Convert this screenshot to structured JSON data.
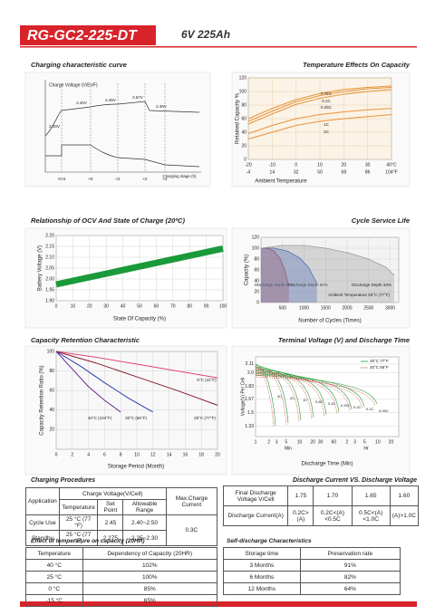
{
  "header": {
    "model": "RG-GC2-225-DT",
    "spec": "6V 225Ah"
  },
  "charging_curve": {
    "title": "Charging characteristic curve",
    "axis_label": "Charge Voltage (V/EVF)",
    "voltage_labels": [
      "2.00V",
      "2.40V",
      "2.45V",
      "2.67V",
      "2.30V"
    ],
    "stages": [
      "<0.5",
      "<6",
      "<2",
      "<2",
      "<4"
    ],
    "x_label": "Charging stage (h)"
  },
  "temperature_effects": {
    "type": "line",
    "title": "Temperature Effects On Capacity",
    "y_label": "Retained Capacity %",
    "x_label": "Ambient Temperature",
    "x": [
      -20,
      -10,
      0,
      10,
      20,
      30,
      40
    ],
    "xlim": [
      -20,
      40
    ],
    "xticks": [
      -20,
      -10,
      0,
      10,
      20,
      30,
      {
        "value": 40,
        "label": "40°C"
      }
    ],
    "xticks_f": [
      -4,
      14,
      32,
      50,
      68,
      86,
      {
        "value": 104,
        "label": "104°F"
      }
    ],
    "ylim": [
      0,
      120
    ],
    "yticks": [
      0,
      20,
      40,
      60,
      80,
      100,
      120
    ],
    "grid": true,
    "series": [
      {
        "name": "0.05C",
        "color": "#e8923a",
        "values": [
          60,
          75,
          88,
          97,
          103,
          106,
          108
        ]
      },
      {
        "name": "0.1C",
        "color": "#e8923a",
        "values": [
          56,
          71,
          85,
          94,
          100,
          104,
          106
        ]
      },
      {
        "name": "0.25C",
        "color": "#e8923a",
        "values": [
          52,
          67,
          81,
          90,
          96,
          100,
          103
        ]
      },
      {
        "name": "1C",
        "color": "#e8923a",
        "values": [
          38,
          50,
          60,
          66,
          70,
          73,
          75
        ]
      },
      {
        "name": "2C",
        "color": "#e8923a",
        "values": [
          30,
          40,
          50,
          56,
          60,
          63,
          66
        ]
      }
    ]
  },
  "ocv": {
    "type": "line",
    "title": "Relationship of OCV And State of Charge (20ºC)",
    "y_label": "Battery Voltage (V)",
    "x_label": "State Of Capacity (%)",
    "xlim": [
      0,
      100
    ],
    "xticks": [
      0,
      10,
      20,
      30,
      40,
      50,
      60,
      70,
      80,
      90,
      100
    ],
    "ylim": [
      1.9,
      2.2
    ],
    "yticks": [
      {
        "value": 1.9,
        "label": "1.90"
      },
      1.95,
      {
        "value": 2,
        "label": "2.00"
      },
      2.05,
      {
        "value": 2.1,
        "label": "2.10"
      },
      2.15,
      {
        "value": 2.2,
        "label": "2.20"
      }
    ],
    "grid": true,
    "series": [
      {
        "color": "#1a9a3a",
        "x": [
          0,
          100
        ],
        "values": [
          1.975,
          2.14
        ]
      }
    ]
  },
  "cycle_life": {
    "type": "line",
    "title": "Cycle Service Life",
    "y_label": "Capacity (%)",
    "x_label": "Number of Cycles (Times)",
    "note": "Ambient Temperature 25°C (77°F)",
    "xlim": [
      0,
      3200
    ],
    "xticks": [
      500,
      1000,
      1500,
      2000,
      2500,
      3000
    ],
    "ylim": [
      0,
      120
    ],
    "yticks": [
      0,
      20,
      40,
      60,
      80,
      100,
      120
    ],
    "grid": true,
    "series": [
      {
        "name": "Discharge Depth 80%",
        "color": "#d42a2a",
        "x": [
          0,
          150,
          300,
          450,
          550,
          650
        ],
        "values": [
          100,
          100,
          95,
          80,
          60,
          30
        ]
      },
      {
        "name": "Discharge Depth 50%",
        "color": "#2a55c8",
        "x": [
          0,
          300,
          600,
          900,
          1100,
          1300
        ],
        "values": [
          100,
          100,
          95,
          82,
          65,
          35
        ]
      },
      {
        "name": "Discharge Depth 33%",
        "color": "#9a9a9a",
        "x": [
          0,
          500,
          1000,
          1500,
          2000,
          2500,
          2900,
          3100
        ],
        "values": [
          100,
          105,
          105,
          100,
          92,
          80,
          65,
          50
        ]
      }
    ]
  },
  "retention": {
    "type": "line",
    "title": "Capacity Retention Characteristic",
    "y_label": "Capacity Retention Ratio (%)",
    "x_label": "Storage Period (Month)",
    "xlim": [
      0,
      20
    ],
    "xticks": [
      0,
      2,
      4,
      6,
      8,
      10,
      12,
      14,
      16,
      18,
      20
    ],
    "ylim": [
      0,
      100
    ],
    "yticks": [
      20,
      40,
      60,
      80,
      100
    ],
    "grid": true,
    "series": [
      {
        "name": "5°C (41°F)",
        "color": "#e0457a",
        "x": [
          0,
          5,
          10,
          15,
          20
        ],
        "values": [
          100,
          94,
          87,
          80,
          73
        ]
      },
      {
        "name": "25°C (77°F)",
        "color": "#8a1c2c",
        "x": [
          0,
          5,
          10,
          15,
          20
        ],
        "values": [
          100,
          88,
          74,
          60,
          45
        ]
      },
      {
        "name": "30°C (86°F)",
        "color": "#2a3fb0",
        "x": [
          0,
          3,
          6,
          9,
          12
        ],
        "values": [
          100,
          85,
          68,
          52,
          38
        ]
      },
      {
        "name": "40°C (104°F)",
        "color": "#6a2a8a",
        "x": [
          0,
          2,
          4,
          6,
          8
        ],
        "values": [
          100,
          82,
          64,
          50,
          38
        ]
      }
    ]
  },
  "terminal_voltage": {
    "type": "line",
    "title": "Terminal Voltage (V) and Discharge Time",
    "y_label": "Voltage(V) Per Cell",
    "x_label": "Discharge Time (Min)",
    "unit_min": "Min",
    "unit_hr": "Hr",
    "legend": [
      "25°C 77°F",
      "20°C 68°F"
    ],
    "ylim": [
      1.2,
      2.2
    ],
    "yticks": [
      1.33,
      1.5,
      1.67,
      1.83,
      {
        "value": 2,
        "label": "2.0"
      },
      2.11
    ],
    "xticks_min": [
      1,
      2,
      3,
      5,
      10,
      20,
      30,
      60
    ],
    "xticks_hr": [
      2,
      3,
      5,
      10,
      20
    ],
    "curve_labels": [
      "3C",
      "2C",
      "1C",
      "0.6C",
      "0.4C",
      "0.25C",
      "0.2C",
      "0.1C",
      "0.05C"
    ]
  },
  "charging_procedures": {
    "title": "Charging Procedures",
    "head": [
      "Application",
      "Charge Voltage(V/Cell)",
      "Max.Charge Current",
      "Temperature",
      "Set Point",
      "Allowable Range"
    ],
    "rows": [
      [
        "Cycle Use",
        "25 °C (77 °F)",
        "2.45",
        "2.40~2.50",
        "0.3C"
      ],
      [
        "Standby",
        "25 °C (77 °F)",
        "2.275",
        "2.25~2.30"
      ]
    ]
  },
  "discharge": {
    "title": "Discharge Current VS. Discharge Voltage",
    "rows": [
      [
        "Final Discharge Voltage V/Cell",
        "1.75",
        "1.70",
        "1.65",
        "1.60"
      ],
      [
        "Discharge Current(A)",
        "0.2C>(A)",
        "0.2C<(A)<0.5C",
        "0.5C<(A)<1.0C",
        "(A)>1.0C"
      ]
    ]
  },
  "temperature_table": {
    "title": "Effect of temperature on capacity (20HR)",
    "head": [
      "Temperature",
      "Dependency of Capacity (20HR)"
    ],
    "rows": [
      [
        "40 °C",
        "102%"
      ],
      [
        "25 °C",
        "100%"
      ],
      [
        "0 °C",
        "85%"
      ],
      [
        "-15 °C",
        "65%"
      ]
    ]
  },
  "self_discharge": {
    "title": "Self-discharge Characteristics",
    "head": [
      "Storage time",
      "Preservation rate"
    ],
    "rows": [
      [
        "3 Months",
        "91%"
      ],
      [
        "6 Months",
        "82%"
      ],
      [
        "12 Months",
        "64%"
      ]
    ]
  }
}
